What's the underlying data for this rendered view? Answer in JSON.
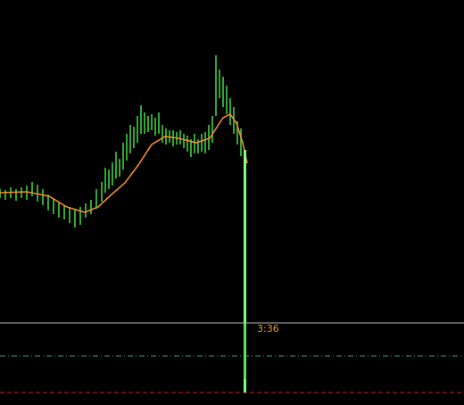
{
  "timer": "3:36"
}
